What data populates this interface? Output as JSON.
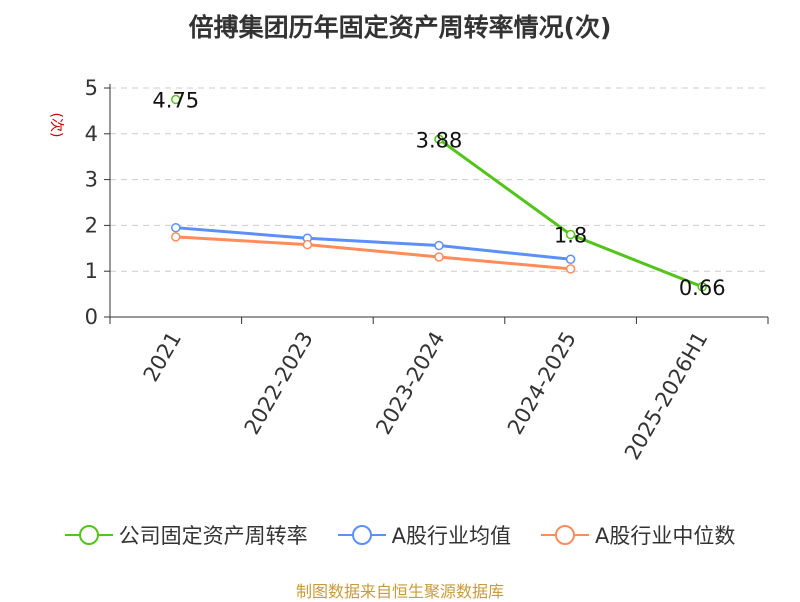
{
  "chart_data": {
    "type": "line",
    "title": "倍搏集团历年固定资产周转率情况(次)",
    "ylabel": "(次)",
    "categories": [
      "2021",
      "2022-2023",
      "2023-2024",
      "2024-2025",
      "2025-2026H1"
    ],
    "ylim": [
      0,
      5
    ],
    "yticks": [
      "0",
      "1",
      "2",
      "3",
      "4",
      "5"
    ],
    "grid": true,
    "legend_position": "bottom",
    "series": [
      {
        "name": "公司固定资产周转率",
        "color": "#52c41a",
        "values": [
          4.75,
          null,
          3.88,
          1.8,
          0.66
        ],
        "data_labels": [
          "4.75",
          null,
          "3.88",
          "1.8",
          "0.66"
        ]
      },
      {
        "name": "A股行业均值",
        "color": "#5b8ff9",
        "values": [
          1.95,
          1.72,
          1.56,
          1.26,
          null
        ]
      },
      {
        "name": "A股行业中位数",
        "color": "#ff8c5a",
        "values": [
          1.75,
          1.58,
          1.31,
          1.05,
          null
        ]
      }
    ],
    "source": "制图数据来自恒生聚源数据库"
  }
}
